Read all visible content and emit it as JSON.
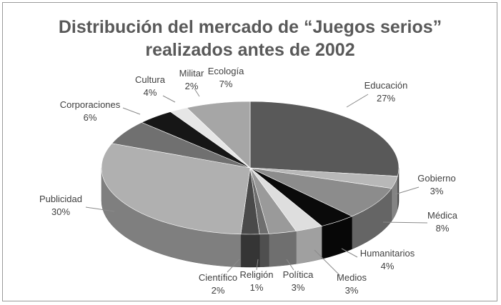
{
  "chart_data": {
    "type": "pie",
    "title_line1": "Distribución del mercado de “Juegos serios”",
    "title_line2": "realizados antes de 2002",
    "slices": [
      {
        "name": "Educación",
        "value": 27,
        "label": "27%",
        "color": "#595959"
      },
      {
        "name": "Gobierno",
        "value": 3,
        "label": "3%",
        "color": "#b8b8b8"
      },
      {
        "name": "Médica",
        "value": 8,
        "label": "8%",
        "color": "#8c8c8c"
      },
      {
        "name": "Humanitarios",
        "value": 4,
        "label": "4%",
        "color": "#0a0a0a"
      },
      {
        "name": "Medios",
        "value": 3,
        "label": "3%",
        "color": "#dedede"
      },
      {
        "name": "Política",
        "value": 3,
        "label": "3%",
        "color": "#9a9a9a"
      },
      {
        "name": "Religión",
        "value": 1,
        "label": "1%",
        "color": "#6e6e6e"
      },
      {
        "name": "Científico",
        "value": 2,
        "label": "2%",
        "color": "#4a4a4a"
      },
      {
        "name": "Publicidad",
        "value": 30,
        "label": "30%",
        "color": "#b0b0b0"
      },
      {
        "name": "Corporaciones",
        "value": 6,
        "label": "6%",
        "color": "#707070"
      },
      {
        "name": "Cultura",
        "value": 4,
        "label": "4%",
        "color": "#161616"
      },
      {
        "name": "Militar",
        "value": 2,
        "label": "2%",
        "color": "#e6e6e6"
      },
      {
        "name": "Ecología",
        "value": 7,
        "label": "7%",
        "color": "#a6a6a6"
      }
    ]
  }
}
